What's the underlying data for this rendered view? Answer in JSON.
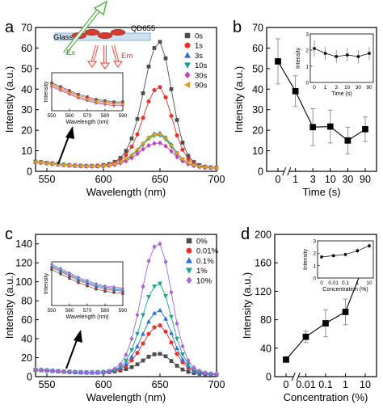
{
  "chart_data": [
    {
      "panel": "a",
      "type": "line",
      "xlabel": "Wavelength (nm)",
      "ylabel": "Intensity (a.u.)",
      "xlim": [
        540,
        700
      ],
      "ylim": [
        0,
        70
      ],
      "xticks": [
        550,
        600,
        650,
        700
      ],
      "yticks": [
        0,
        10,
        20,
        30,
        40,
        50,
        60,
        70
      ],
      "legend_position": "top-right",
      "x": [
        540,
        545,
        550,
        555,
        560,
        565,
        570,
        575,
        580,
        585,
        590,
        595,
        600,
        605,
        610,
        615,
        620,
        625,
        630,
        635,
        640,
        645,
        650,
        655,
        660,
        665,
        670,
        675,
        680,
        685,
        690,
        695,
        700
      ],
      "series": [
        {
          "name": "0s",
          "color": "#4d4d4d",
          "marker": "square",
          "values": [
            4.7,
            4.5,
            4.2,
            3.9,
            3.6,
            3.3,
            3.1,
            2.9,
            2.8,
            2.7,
            2.7,
            2.8,
            3.1,
            3.6,
            4.6,
            6.5,
            10.0,
            16.0,
            25.5,
            38.0,
            51.0,
            60.0,
            63.0,
            55.0,
            40.0,
            25.0,
            14.0,
            7.5,
            4.5,
            3.0,
            2.3,
            2.0,
            1.8
          ]
        },
        {
          "name": "1s",
          "color": "#e8312c",
          "marker": "circle",
          "values": [
            4.6,
            4.4,
            4.1,
            3.8,
            3.5,
            3.2,
            3.0,
            2.8,
            2.7,
            2.6,
            2.6,
            2.7,
            2.9,
            3.3,
            4.2,
            5.5,
            8.0,
            12.0,
            18.0,
            26.0,
            34.0,
            39.5,
            41.0,
            36.0,
            27.0,
            17.5,
            10.5,
            6.0,
            3.8,
            2.7,
            2.2,
            1.9,
            1.8
          ]
        },
        {
          "name": "3s",
          "color": "#2a6fd6",
          "marker": "triangle",
          "values": [
            4.5,
            4.3,
            4.0,
            3.7,
            3.4,
            3.1,
            2.9,
            2.7,
            2.6,
            2.5,
            2.5,
            2.5,
            2.7,
            3.0,
            3.5,
            4.5,
            6.0,
            8.0,
            10.5,
            13.5,
            16.5,
            18.3,
            18.5,
            16.5,
            13.0,
            9.0,
            6.0,
            4.2,
            3.0,
            2.4,
            2.0,
            1.8,
            1.7
          ]
        },
        {
          "name": "10s",
          "color": "#1aa38a",
          "marker": "tri-down",
          "values": [
            4.4,
            4.2,
            3.9,
            3.6,
            3.3,
            3.0,
            2.8,
            2.6,
            2.5,
            2.4,
            2.4,
            2.4,
            2.6,
            2.9,
            3.4,
            4.3,
            5.6,
            7.5,
            10.0,
            13.0,
            15.8,
            17.3,
            17.5,
            15.5,
            12.0,
            8.5,
            5.8,
            4.0,
            2.9,
            2.3,
            1.9,
            1.7,
            1.6
          ]
        },
        {
          "name": "30s",
          "color": "#c43dbd",
          "marker": "diamond",
          "values": [
            4.4,
            4.2,
            3.9,
            3.6,
            3.3,
            3.0,
            2.8,
            2.6,
            2.5,
            2.4,
            2.4,
            2.4,
            2.5,
            2.8,
            3.2,
            4.0,
            5.0,
            6.5,
            8.5,
            10.8,
            12.6,
            13.6,
            13.8,
            12.3,
            9.8,
            7.0,
            4.9,
            3.5,
            2.7,
            2.2,
            1.8,
            1.7,
            1.6
          ]
        },
        {
          "name": "90s",
          "color": "#d9a21a",
          "marker": "tri-left",
          "values": [
            4.5,
            4.3,
            4.0,
            3.7,
            3.4,
            3.1,
            2.9,
            2.7,
            2.6,
            2.5,
            2.5,
            2.5,
            2.7,
            3.0,
            3.5,
            4.5,
            6.0,
            8.0,
            10.7,
            13.6,
            16.3,
            17.8,
            18.0,
            16.0,
            12.5,
            8.8,
            6.0,
            4.2,
            3.0,
            2.4,
            2.0,
            1.8,
            1.7
          ]
        }
      ],
      "schematic": {
        "labels": [
          "QD655",
          "Glass",
          "Ex",
          "Em"
        ]
      },
      "inset": {
        "xlabel": "Wavelength (nm)",
        "ylabel": "Intensity",
        "xlim": [
          550,
          590
        ],
        "ylim": [
          2,
          5
        ],
        "xticks": [
          550,
          560,
          570,
          580,
          590
        ]
      }
    },
    {
      "panel": "b",
      "type": "line",
      "xlabel": "Time (s)",
      "ylabel": "Intensity (a.u.)",
      "ylim": [
        0,
        70
      ],
      "yticks": [
        0,
        10,
        20,
        30,
        40,
        50,
        60,
        70
      ],
      "categories": [
        "0",
        "1",
        "3",
        "10",
        "30",
        "90"
      ],
      "values": [
        53.5,
        39.0,
        21.5,
        21.8,
        15.0,
        20.5
      ],
      "errors": [
        11.0,
        7.5,
        9.0,
        8.0,
        6.5,
        6.0
      ],
      "color": "#000000",
      "marker": "square",
      "axis_break": "between 0 and 1",
      "inset": {
        "xlabel": "Time (s)",
        "ylabel": "Intensity",
        "categories": [
          "0",
          "1",
          "3",
          "10",
          "30",
          "90"
        ],
        "values": [
          2.1,
          1.8,
          1.6,
          1.7,
          1.6,
          1.8
        ],
        "errors": [
          0.5,
          0.4,
          0.4,
          0.4,
          0.4,
          0.4
        ],
        "ylim": [
          0,
          3
        ],
        "yticks": [
          0,
          1,
          2,
          3
        ]
      }
    },
    {
      "panel": "c",
      "type": "line",
      "xlabel": "Wavelength (nm)",
      "ylabel": "Intensity (a.u.)",
      "xlim": [
        540,
        700
      ],
      "ylim": [
        0,
        150
      ],
      "xticks": [
        550,
        600,
        650,
        700
      ],
      "yticks": [
        0,
        20,
        40,
        60,
        80,
        100,
        120,
        140
      ],
      "legend_position": "top-right",
      "x": [
        540,
        545,
        550,
        555,
        560,
        565,
        570,
        575,
        580,
        585,
        590,
        595,
        600,
        605,
        610,
        615,
        620,
        625,
        630,
        635,
        640,
        645,
        650,
        655,
        660,
        665,
        670,
        675,
        680,
        685,
        690,
        695,
        700
      ],
      "series": [
        {
          "name": "0%",
          "color": "#4d4d4d",
          "marker": "square",
          "values": [
            7.0,
            6.7,
            6.3,
            5.9,
            5.5,
            5.1,
            4.8,
            4.5,
            4.3,
            4.2,
            4.1,
            4.2,
            4.4,
            4.8,
            5.4,
            6.5,
            8.0,
            10.0,
            13.0,
            17.0,
            21.0,
            23.5,
            24.0,
            21.5,
            16.5,
            11.5,
            7.5,
            5.0,
            3.8,
            3.0,
            2.6,
            2.3,
            2.1
          ]
        },
        {
          "name": "0.01%",
          "color": "#e8312c",
          "marker": "circle",
          "values": [
            7.2,
            6.9,
            6.5,
            6.1,
            5.7,
            5.3,
            5.0,
            4.7,
            4.5,
            4.4,
            4.3,
            4.4,
            4.7,
            5.2,
            6.2,
            8.0,
            11.5,
            17.0,
            25.0,
            35.0,
            45.0,
            52.0,
            54.0,
            47.5,
            36.0,
            24.0,
            15.0,
            9.0,
            5.5,
            4.0,
            3.1,
            2.6,
            2.3
          ]
        },
        {
          "name": "0.1%",
          "color": "#2a6fd6",
          "marker": "triangle",
          "values": [
            7.3,
            7.0,
            6.6,
            6.2,
            5.8,
            5.4,
            5.1,
            4.8,
            4.6,
            4.5,
            4.4,
            4.5,
            4.8,
            5.4,
            6.6,
            9.0,
            13.5,
            21.0,
            32.0,
            45.0,
            58.0,
            67.0,
            70.0,
            61.0,
            46.0,
            30.0,
            18.0,
            10.5,
            6.3,
            4.3,
            3.3,
            2.7,
            2.4
          ]
        },
        {
          "name": "1%",
          "color": "#1aa38a",
          "marker": "tri-down",
          "values": [
            7.4,
            7.1,
            6.7,
            6.3,
            5.9,
            5.5,
            5.2,
            4.9,
            4.7,
            4.6,
            4.5,
            4.6,
            5.0,
            5.7,
            7.2,
            10.5,
            17.0,
            28.0,
            45.0,
            65.0,
            84.0,
            95.0,
            98.0,
            85.0,
            63.0,
            40.0,
            23.5,
            13.0,
            7.5,
            5.0,
            3.6,
            2.9,
            2.5
          ]
        },
        {
          "name": "10%",
          "color": "#a868d6",
          "marker": "diamond",
          "values": [
            7.5,
            7.2,
            6.8,
            6.4,
            6.0,
            5.6,
            5.3,
            5.0,
            4.8,
            4.7,
            4.6,
            4.8,
            5.2,
            6.2,
            8.3,
            13.0,
            23.0,
            40.0,
            65.0,
            95.0,
            122.0,
            137.0,
            140.0,
            121.0,
            89.0,
            56.0,
            32.0,
            17.0,
            9.5,
            6.0,
            4.2,
            3.2,
            2.7
          ]
        }
      ],
      "inset": {
        "xlabel": "Wavelength (nm)",
        "ylabel": "Intensity",
        "xlim": [
          550,
          590
        ],
        "ylim": [
          3,
          7
        ],
        "xticks": [
          550,
          560,
          570,
          580,
          590
        ]
      }
    },
    {
      "panel": "d",
      "type": "line",
      "xlabel": "Concentration (%)",
      "ylabel": "Intensity (a.u.)",
      "ylim": [
        0,
        200
      ],
      "yticks": [
        0,
        40,
        80,
        120,
        160,
        200
      ],
      "categories": [
        "0",
        "0.01",
        "0.1",
        "1",
        "10"
      ],
      "values": [
        24.0,
        56.0,
        75.0,
        91.0,
        162.0
      ],
      "errors": [
        3.0,
        8.0,
        19.0,
        18.0,
        23.0
      ],
      "color": "#000000",
      "marker": "square",
      "axis_break": "between 0 and 0.01",
      "inset": {
        "xlabel": "Concentration (%)",
        "ylabel": "Intensity",
        "categories": [
          "0",
          "0.01",
          "0.1",
          "1",
          "10"
        ],
        "values": [
          1.7,
          1.8,
          1.9,
          2.2,
          2.6
        ],
        "errors": [
          0.15,
          0.15,
          0.15,
          0.2,
          0.2
        ],
        "ylim": [
          0,
          3
        ],
        "yticks": [
          0,
          1,
          2,
          3
        ]
      }
    }
  ]
}
